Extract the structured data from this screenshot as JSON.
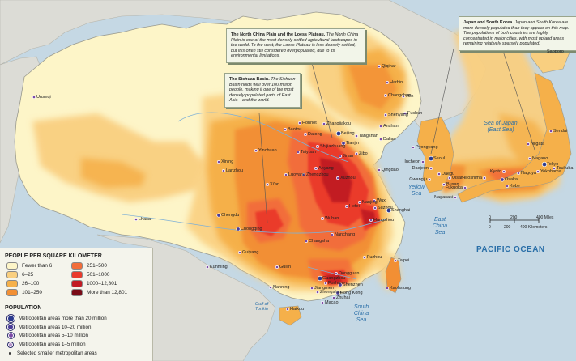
{
  "callouts": {
    "north_china": {
      "title": "The North China Plain and the Loess Plateau.",
      "body": "The North China Plain is one of the most densely settled agricultural landscapes in the world. To the west, the Loess Plateau is less densely settled, but it is often still considered overpopulated, due to its environmental limitations."
    },
    "sichuan": {
      "title": "The Sichuan Basin.",
      "body": "The Sichuan Basin holds well over 100 million people, making it one of the most densely populated parts of East Asia—and the world."
    },
    "japan_korea": {
      "title": "Japan and South Korea.",
      "body": "Japan and South Korea are more densely populated than they appear on this map. The populations of both countries are highly concentrated in major cities, with most upland areas remaining relatively sparsely populated."
    }
  },
  "seas": {
    "sea_of_japan": "Sea of Japan (East Sea)",
    "yellow_sea": "Yellow Sea",
    "east_china_sea": "East China Sea",
    "south_china_sea": "South China Sea",
    "gulf_of_tonkin": "Gulf of Tonkin",
    "pacific": "PACIFIC OCEAN"
  },
  "cities": [
    "Urumqi",
    "Qiqihar",
    "Harbin",
    "Changchun",
    "Jilin",
    "Shenyang",
    "Fushun",
    "Anshan",
    "Hohhot",
    "Baotou",
    "Datong",
    "Zhangjiakou",
    "Beijing",
    "Tianjin",
    "Tangshan",
    "Dalian",
    "Shijiazhuang",
    "Taiyuan",
    "Jinan",
    "Zibo",
    "Qingdao",
    "Yinchuan",
    "Xining",
    "Lanzhou",
    "Luoyang",
    "Zhengzhou",
    "Xi'an",
    "Xuzhou",
    "Anyang",
    "Nanjing",
    "Wuxi",
    "Suzhou",
    "Shanghai",
    "Hefei",
    "Wuhan",
    "Hangzhou",
    "Chengdu",
    "Chongqing",
    "Changsha",
    "Nanchang",
    "Fuzhou",
    "Guiyang",
    "Kunming",
    "Guilin",
    "Taipei",
    "Kaohsiung",
    "Dongguan",
    "Guangzhou",
    "Foshan",
    "Shenzhen",
    "Jiangmen",
    "Zhongshan",
    "Hong Kong",
    "Zhuhai",
    "Macao",
    "Nanning",
    "Haikou",
    "Lhasa",
    "Pyongyang",
    "Seoul",
    "Incheon",
    "Daejeon",
    "Daegu",
    "Ulsan",
    "Gwangju",
    "Busan",
    "Sapporo",
    "Sendai",
    "Niigata",
    "Tokyo",
    "Yokohama",
    "Nagoya",
    "Kyoto",
    "Osaka",
    "Kobe",
    "Hiroshima",
    "Fukuoka",
    "Nagasaki",
    "Tsukuba",
    "Nagano"
  ],
  "scale": {
    "miles_labels": [
      "0",
      "200",
      "400 Miles"
    ],
    "km_labels": [
      "0",
      "200",
      "400 Kilometers"
    ]
  },
  "legend": {
    "density_title": "PEOPLE PER SQUARE KILOMETER",
    "density": [
      {
        "label": "Fewer than 6",
        "color": "#fdf5c8"
      },
      {
        "label": "6–25",
        "color": "#f9cf80"
      },
      {
        "label": "26–100",
        "color": "#f5b04a"
      },
      {
        "label": "101–250",
        "color": "#f28f34"
      },
      {
        "label": "251–500",
        "color": "#f26d3a"
      },
      {
        "label": "501–1000",
        "color": "#ea3a2c"
      },
      {
        "label": "1000–12,801",
        "color": "#c21b24"
      },
      {
        "label": "More than 12,801",
        "color": "#7a0b17"
      }
    ],
    "population_title": "POPULATION",
    "population": [
      {
        "label": "Metropolitan areas more than 20 million",
        "color": "#2b3a8e"
      },
      {
        "label": "Metropolitan areas 10–20 million",
        "color": "#4a3b97"
      },
      {
        "label": "Metropolitan areas 5–10 million",
        "color": "#7b4aa6"
      },
      {
        "label": "Metropolitan areas 1–5 million",
        "color": "#b48fc9"
      },
      {
        "label": "Selected smaller metropolitan areas",
        "color": "#3a3a3a"
      }
    ]
  }
}
